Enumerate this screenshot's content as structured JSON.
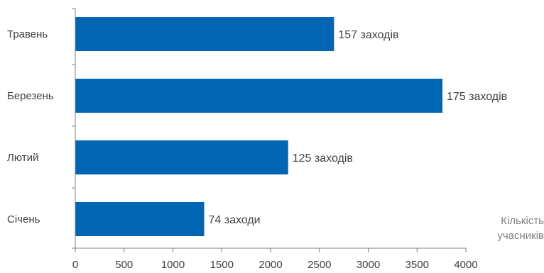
{
  "chart_data": {
    "type": "bar",
    "orientation": "horizontal",
    "categories": [
      "Травень",
      "Березень",
      "Лютий",
      "Січень"
    ],
    "values": [
      2650,
      3760,
      2180,
      1320
    ],
    "data_labels": [
      "157 заходів",
      "175 заходів",
      "125  заходів",
      "74 заходи"
    ],
    "title": "",
    "xlabel": [
      "Кількість",
      "учасників"
    ],
    "ylabel": "",
    "xlim": [
      0,
      4000
    ],
    "xticks": [
      0,
      500,
      1000,
      1500,
      2000,
      2500,
      3000,
      3500,
      4000
    ],
    "grid": false,
    "legend": "none",
    "bar_color": "#0066B3",
    "axis_color": "#7f7f7f"
  }
}
